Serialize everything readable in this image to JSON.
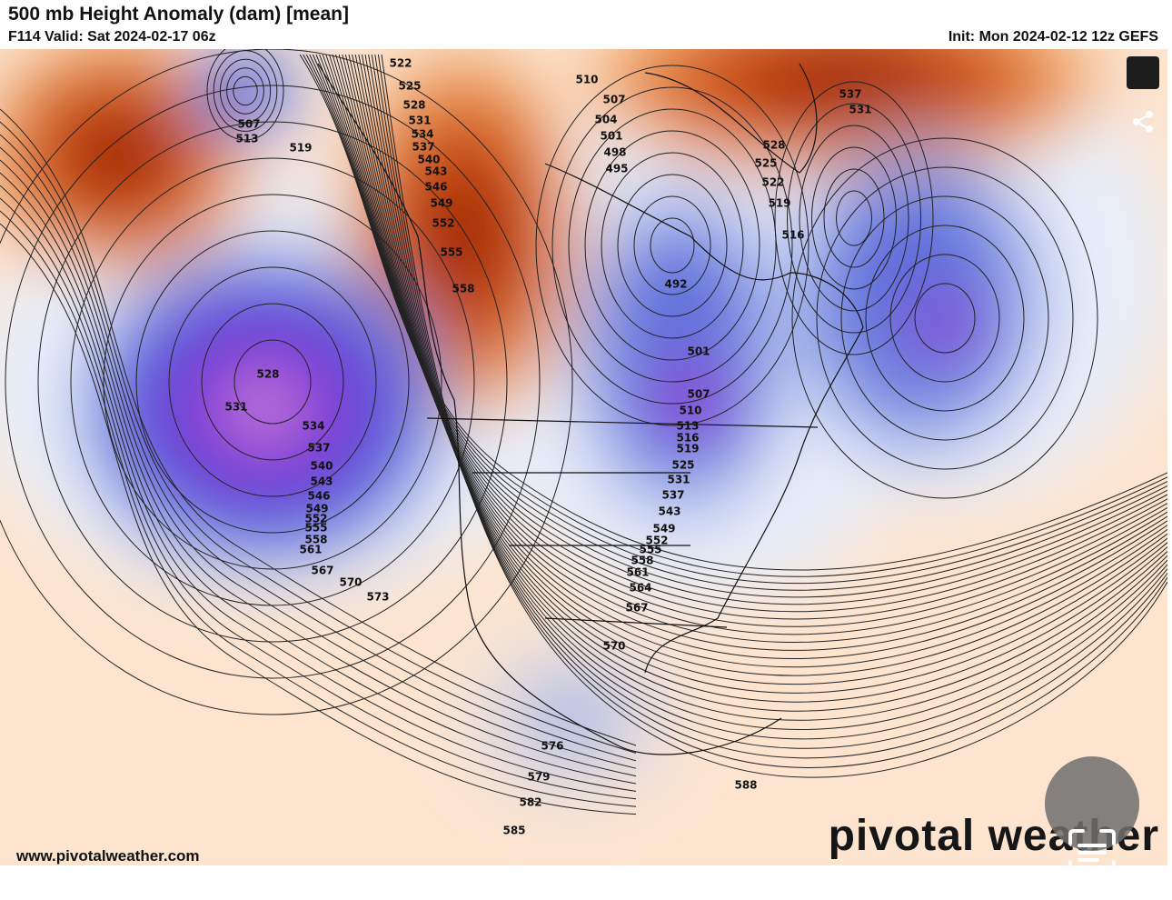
{
  "header": {
    "title": "500 mb Height Anomaly (dam) [mean]",
    "valid": "F114 Valid: Sat 2024-02-17 06z",
    "init": "Init: Mon 2024-02-12 12z GEFS"
  },
  "map": {
    "contour_labels": [
      522,
      525,
      528,
      531,
      534,
      537,
      540,
      543,
      546,
      549,
      552,
      555,
      558,
      510,
      507,
      504,
      501,
      498,
      495,
      507,
      513,
      519,
      537,
      531,
      528,
      525,
      522,
      519,
      516,
      492,
      501,
      507,
      510,
      513,
      516,
      519,
      525,
      531,
      537,
      543,
      549,
      552,
      555,
      558,
      561,
      564,
      567,
      570,
      528,
      531,
      534,
      537,
      540,
      543,
      546,
      549,
      552,
      555,
      558,
      561,
      567,
      570,
      573,
      576,
      579,
      582,
      585,
      588
    ]
  },
  "footer": {
    "website": "www.pivotalweather.com",
    "logo": "pivotal weather"
  }
}
